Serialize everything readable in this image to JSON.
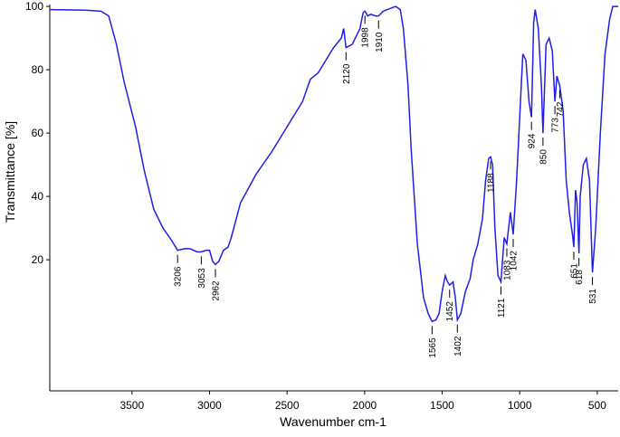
{
  "chart_data": {
    "type": "line",
    "xlabel": "Wavenumber cm-1",
    "ylabel": "Transmittance [%]",
    "xlim": [
      4030,
      365
    ],
    "ylim": [
      -21.4,
      100.6
    ],
    "xticks": [
      3500,
      3000,
      2500,
      2000,
      1500,
      1000,
      500
    ],
    "yticks": [
      20,
      40,
      60,
      80,
      100
    ],
    "series": [
      {
        "name": "spectrum",
        "color": "#1f1fe8",
        "x": [
          4030,
          3800,
          3700,
          3650,
          3600,
          3550,
          3477,
          3420,
          3360,
          3300,
          3243,
          3206,
          3160,
          3126,
          3080,
          3053,
          3020,
          3000,
          2980,
          2962,
          2940,
          2910,
          2880,
          2860,
          2800,
          2700,
          2600,
          2500,
          2400,
          2350,
          2300,
          2200,
          2150,
          2135,
          2120,
          2080,
          2030,
          2010,
          1998,
          1980,
          1960,
          1930,
          1910,
          1880,
          1800,
          1770,
          1750,
          1720,
          1700,
          1660,
          1620,
          1590,
          1565,
          1540,
          1520,
          1500,
          1480,
          1465,
          1452,
          1430,
          1415,
          1402,
          1380,
          1350,
          1320,
          1300,
          1270,
          1240,
          1220,
          1200,
          1188,
          1175,
          1160,
          1140,
          1121,
          1100,
          1083,
          1060,
          1042,
          1020,
          1000,
          980,
          960,
          940,
          924,
          910,
          900,
          880,
          860,
          850,
          830,
          810,
          790,
          773,
          760,
          742,
          720,
          700,
          680,
          660,
          651,
          640,
          630,
          618,
          610,
          590,
          570,
          550,
          531,
          510,
          480,
          450,
          420,
          400,
          380,
          365
        ],
        "values": [
          99,
          98.8,
          98.5,
          97,
          88,
          76,
          62,
          48,
          36,
          30,
          26,
          23,
          23.5,
          23.5,
          22.5,
          22.5,
          23,
          23,
          19.5,
          18.5,
          19.5,
          23,
          24,
          27,
          38,
          47,
          54,
          62,
          70,
          77,
          79,
          87,
          90,
          93,
          87,
          88,
          93,
          98,
          98.5,
          97,
          97.5,
          97,
          97,
          98.5,
          100,
          99,
          93,
          75,
          55,
          25,
          8,
          3,
          0.5,
          1,
          3,
          10,
          15,
          13,
          12,
          13,
          8,
          1,
          3,
          10,
          14,
          20,
          25,
          33,
          45,
          52,
          52.5,
          50,
          30,
          15,
          13,
          27,
          25,
          35,
          28,
          45,
          65,
          85,
          83,
          70,
          65,
          95,
          99,
          93,
          75,
          60,
          88,
          90,
          86,
          70,
          78,
          75,
          67,
          45,
          35,
          28,
          24,
          42,
          38,
          22,
          40,
          50,
          52,
          45,
          16,
          30,
          60,
          85,
          96,
          100,
          100,
          100
        ]
      }
    ],
    "peaks": [
      3206,
      3053,
      2962,
      2120,
      1998,
      1910,
      1565,
      1452,
      1402,
      1188,
      1121,
      1083,
      1042,
      924,
      850,
      773,
      742,
      651,
      618,
      531
    ]
  }
}
